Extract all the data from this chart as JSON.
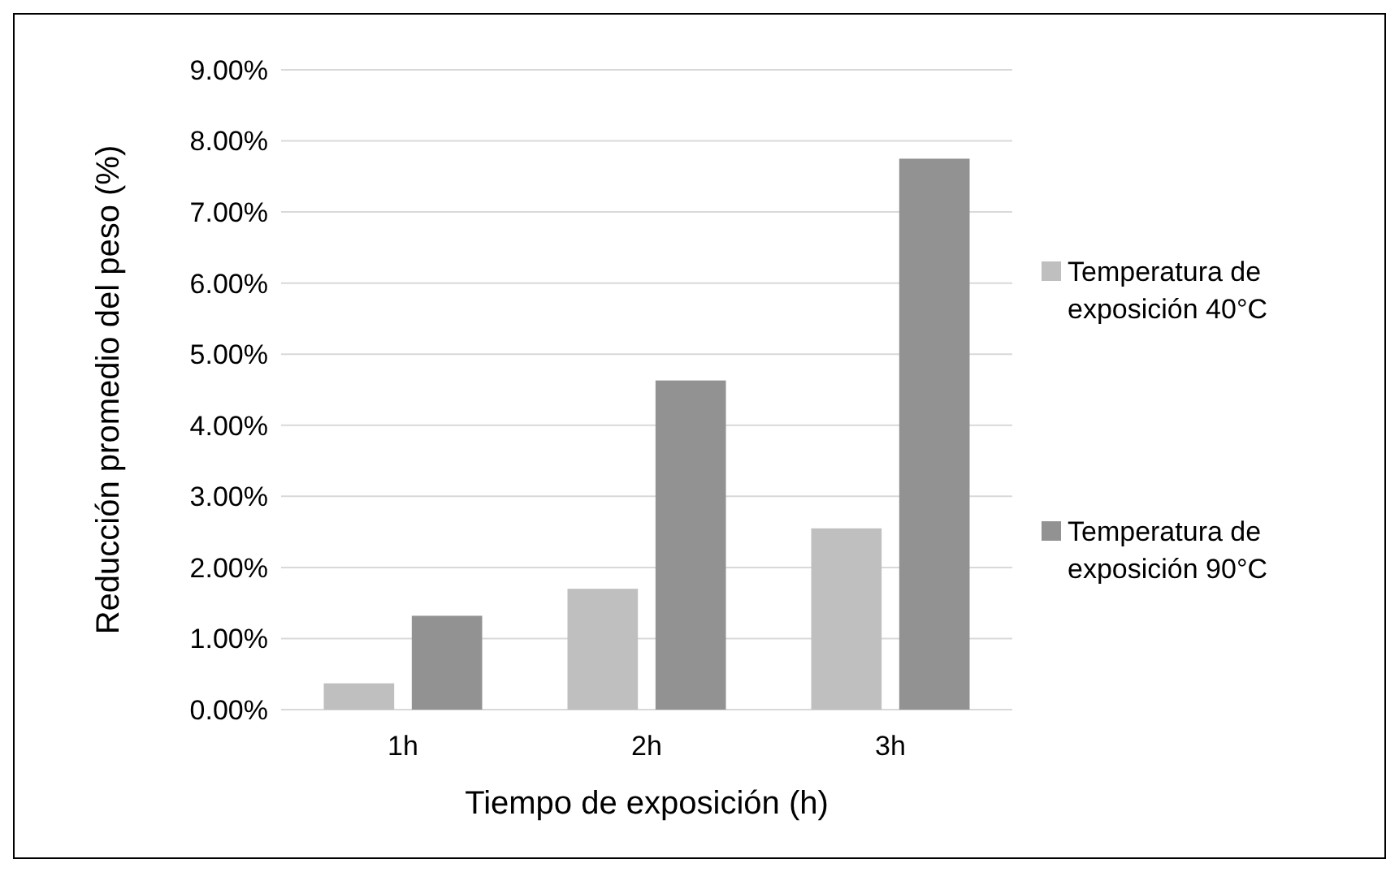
{
  "chart_data": {
    "type": "bar",
    "xlabel": "Tiempo de exposición (h)",
    "ylabel": "Reducción promedio del peso (%)",
    "categories": [
      "1h",
      "2h",
      "3h"
    ],
    "series": [
      {
        "name": "Temperatura de exposición 40°C",
        "color": "#bfbfbf",
        "values": [
          0.37,
          1.7,
          2.55
        ]
      },
      {
        "name": "Temperatura de exposición 90°C",
        "color": "#929292",
        "values": [
          1.32,
          4.63,
          7.75
        ]
      }
    ],
    "ylim": [
      0,
      9
    ],
    "yticks": [
      {
        "value": 0,
        "label": "0.00%"
      },
      {
        "value": 1,
        "label": "1.00%"
      },
      {
        "value": 2,
        "label": "2.00%"
      },
      {
        "value": 3,
        "label": "3.00%"
      },
      {
        "value": 4,
        "label": "4.00%"
      },
      {
        "value": 5,
        "label": "5.00%"
      },
      {
        "value": 6,
        "label": "6.00%"
      },
      {
        "value": 7,
        "label": "7.00%"
      },
      {
        "value": 8,
        "label": "8.00%"
      },
      {
        "value": 9,
        "label": "9.00%"
      }
    ],
    "grid": "y",
    "legend": "right"
  }
}
